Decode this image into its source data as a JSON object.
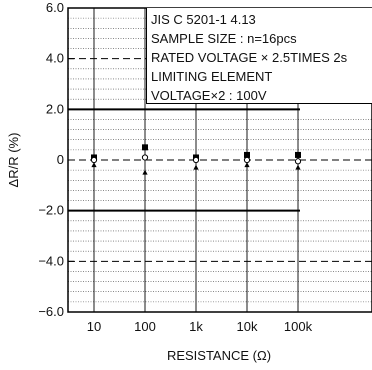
{
  "chart_data": {
    "type": "scatter",
    "ylabel": "ΔR/R (%)",
    "xlabel": "RESISTANCE (Ω)",
    "categories": [
      "10",
      "100",
      "1k",
      "10k",
      "100k"
    ],
    "ylim": [
      -6.0,
      6.0
    ],
    "yticks": [
      "6.0",
      "4.0",
      "2.0",
      "0",
      "−2.0",
      "−4.0",
      "−6.0"
    ],
    "limits": [
      2.0,
      -2.0
    ],
    "series": [
      {
        "marker": "filled-square",
        "values": [
          0.1,
          0.5,
          0.1,
          0.2,
          0.2
        ]
      },
      {
        "marker": "open-circle",
        "values": [
          0.0,
          0.1,
          0.0,
          0.0,
          -0.05
        ]
      },
      {
        "marker": "filled-triangle",
        "values": [
          -0.2,
          -0.5,
          -0.3,
          -0.2,
          -0.3
        ]
      }
    ],
    "annotation": [
      "JIS C 5201-1 4.13",
      "SAMPLE SIZE : n=16pcs",
      "RATED VOLTAGE × 2.5TIMES 2s",
      "LIMITING ELEMENT",
      "VOLTAGE×2 : 100V"
    ],
    "grid": true,
    "legend": "top-right"
  }
}
